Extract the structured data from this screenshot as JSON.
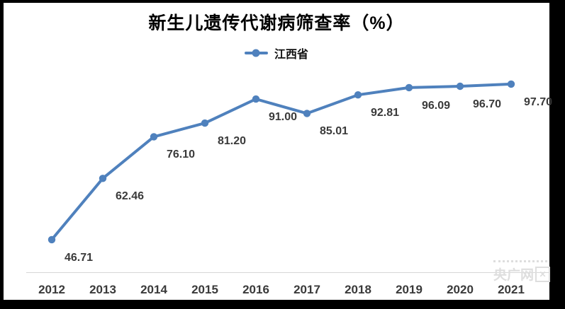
{
  "frame": {
    "border_color": "#000000",
    "background": "#ffffff"
  },
  "chart_data": {
    "type": "line",
    "title": "新生儿遗传代谢病筛查率（%）",
    "categories": [
      "2012",
      "2013",
      "2014",
      "2015",
      "2016",
      "2017",
      "2018",
      "2019",
      "2020",
      "2021"
    ],
    "series": [
      {
        "name": "江西省",
        "color": "#4F81BD",
        "values": [
          46.71,
          62.46,
          76.1,
          81.2,
          91.0,
          85.01,
          92.81,
          96.09,
          96.7,
          97.7
        ]
      }
    ],
    "data_labels": [
      "46.71",
      "62.46",
      "76.10",
      "81.20",
      "91.00",
      "85.01",
      "92.81",
      "96.09",
      "96.70",
      "97.70"
    ],
    "xlabel": "",
    "ylabel": "",
    "y_scale": "log",
    "y_domain": [
      45,
      100
    ],
    "grid": false,
    "y_axis_visible": false,
    "legend_position": "top-center",
    "axis_line_color": "#d6d6d6",
    "label_color": "#3a3a3a"
  },
  "watermark": {
    "text": "央广网",
    "color": "#dedede"
  }
}
